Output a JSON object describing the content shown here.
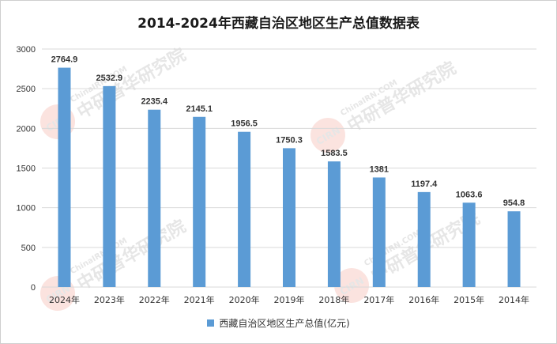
{
  "chart_data": {
    "type": "bar",
    "title": "2014-2024年西藏自治区地区生产总值数据表",
    "categories": [
      "2024年",
      "2023年",
      "2022年",
      "2021年",
      "2020年",
      "2019年",
      "2018年",
      "2017年",
      "2016年",
      "2015年",
      "2014年"
    ],
    "series": [
      {
        "name": "西藏自治区地区生产总值(亿元)",
        "values": [
          2764.9,
          2532.9,
          2235.4,
          2145.1,
          1956.5,
          1750.3,
          1583.5,
          1381,
          1197.4,
          1063.6,
          954.8
        ],
        "labels": [
          "2764.9",
          "2532.9",
          "2235.4",
          "2145.1",
          "1956.5",
          "1750.3",
          "1583.5",
          "1381",
          "1197.4",
          "1063.6",
          "954.8"
        ]
      }
    ],
    "ylim": [
      0,
      3000
    ],
    "yticks": [
      "0",
      "500",
      "1000",
      "1500",
      "2000",
      "2500",
      "3000"
    ],
    "grid": true,
    "legend": "bottom",
    "colors": {
      "bar": "#5b9bd5",
      "grid": "#d9d9d9"
    }
  },
  "watermark": {
    "text": "ChinaIRN.COM",
    "brand": "中研普华研究院",
    "logo": "CIRN"
  }
}
